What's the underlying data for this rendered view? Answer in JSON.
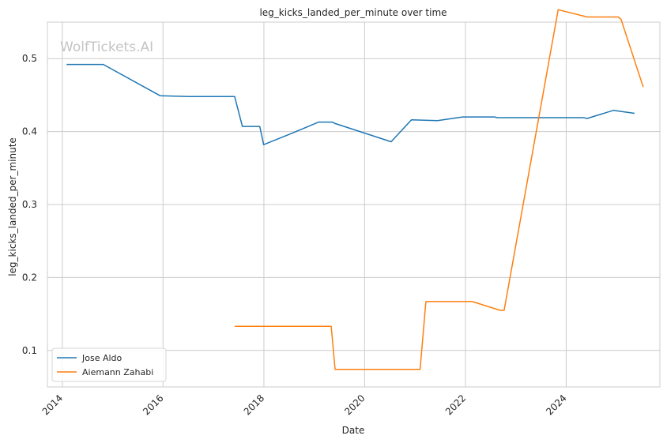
{
  "chart_data": {
    "type": "line",
    "title": "leg_kicks_landed_per_minute over time",
    "xlabel": "Date",
    "ylabel": "leg_kicks_landed_per_minute",
    "watermark": "WolfTickets.AI",
    "xlim": [
      "2013-09-15",
      "2025-11-10"
    ],
    "ylim": [
      0.05,
      0.55
    ],
    "xticks": [
      "2014",
      "2016",
      "2018",
      "2020",
      "2022",
      "2024"
    ],
    "yticks": [
      "0.1",
      "0.2",
      "0.3",
      "0.4",
      "0.5"
    ],
    "grid": true,
    "legend": "bottom-left",
    "colors": {
      "Jose Aldo": "#1f77b4",
      "Aiemann Zahabi": "#ff7f0e"
    },
    "series": [
      {
        "name": "Jose Aldo",
        "points": [
          [
            "2014-02-01",
            0.492
          ],
          [
            "2014-10-25",
            0.492
          ],
          [
            "2015-12-12",
            0.449
          ],
          [
            "2016-07-09",
            0.448
          ],
          [
            "2017-06-03",
            0.448
          ],
          [
            "2017-07-29",
            0.407
          ],
          [
            "2017-12-02",
            0.407
          ],
          [
            "2017-12-30",
            0.382
          ],
          [
            "2018-07-28",
            0.398
          ],
          [
            "2019-02-02",
            0.413
          ],
          [
            "2019-05-11",
            0.413
          ],
          [
            "2019-06-01",
            0.411
          ],
          [
            "2020-07-11",
            0.386
          ],
          [
            "2020-12-05",
            0.416
          ],
          [
            "2021-06-12",
            0.415
          ],
          [
            "2021-12-11",
            0.42
          ],
          [
            "2022-07-30",
            0.42
          ],
          [
            "2022-08-20",
            0.419
          ],
          [
            "2024-05-04",
            0.419
          ],
          [
            "2024-06-01",
            0.418
          ],
          [
            "2024-12-07",
            0.429
          ],
          [
            "2025-05-10",
            0.425
          ]
        ]
      },
      {
        "name": "Aiemann Zahabi",
        "points": [
          [
            "2017-06-03",
            0.133
          ],
          [
            "2019-05-04",
            0.133
          ],
          [
            "2019-06-01",
            0.074
          ],
          [
            "2021-02-06",
            0.074
          ],
          [
            "2021-03-20",
            0.167
          ],
          [
            "2022-02-19",
            0.167
          ],
          [
            "2022-09-10",
            0.155
          ],
          [
            "2022-10-08",
            0.155
          ],
          [
            "2023-11-04",
            0.567
          ],
          [
            "2024-06-01",
            0.557
          ],
          [
            "2025-01-11",
            0.557
          ],
          [
            "2025-02-01",
            0.554
          ],
          [
            "2025-07-12",
            0.461
          ]
        ]
      }
    ]
  }
}
